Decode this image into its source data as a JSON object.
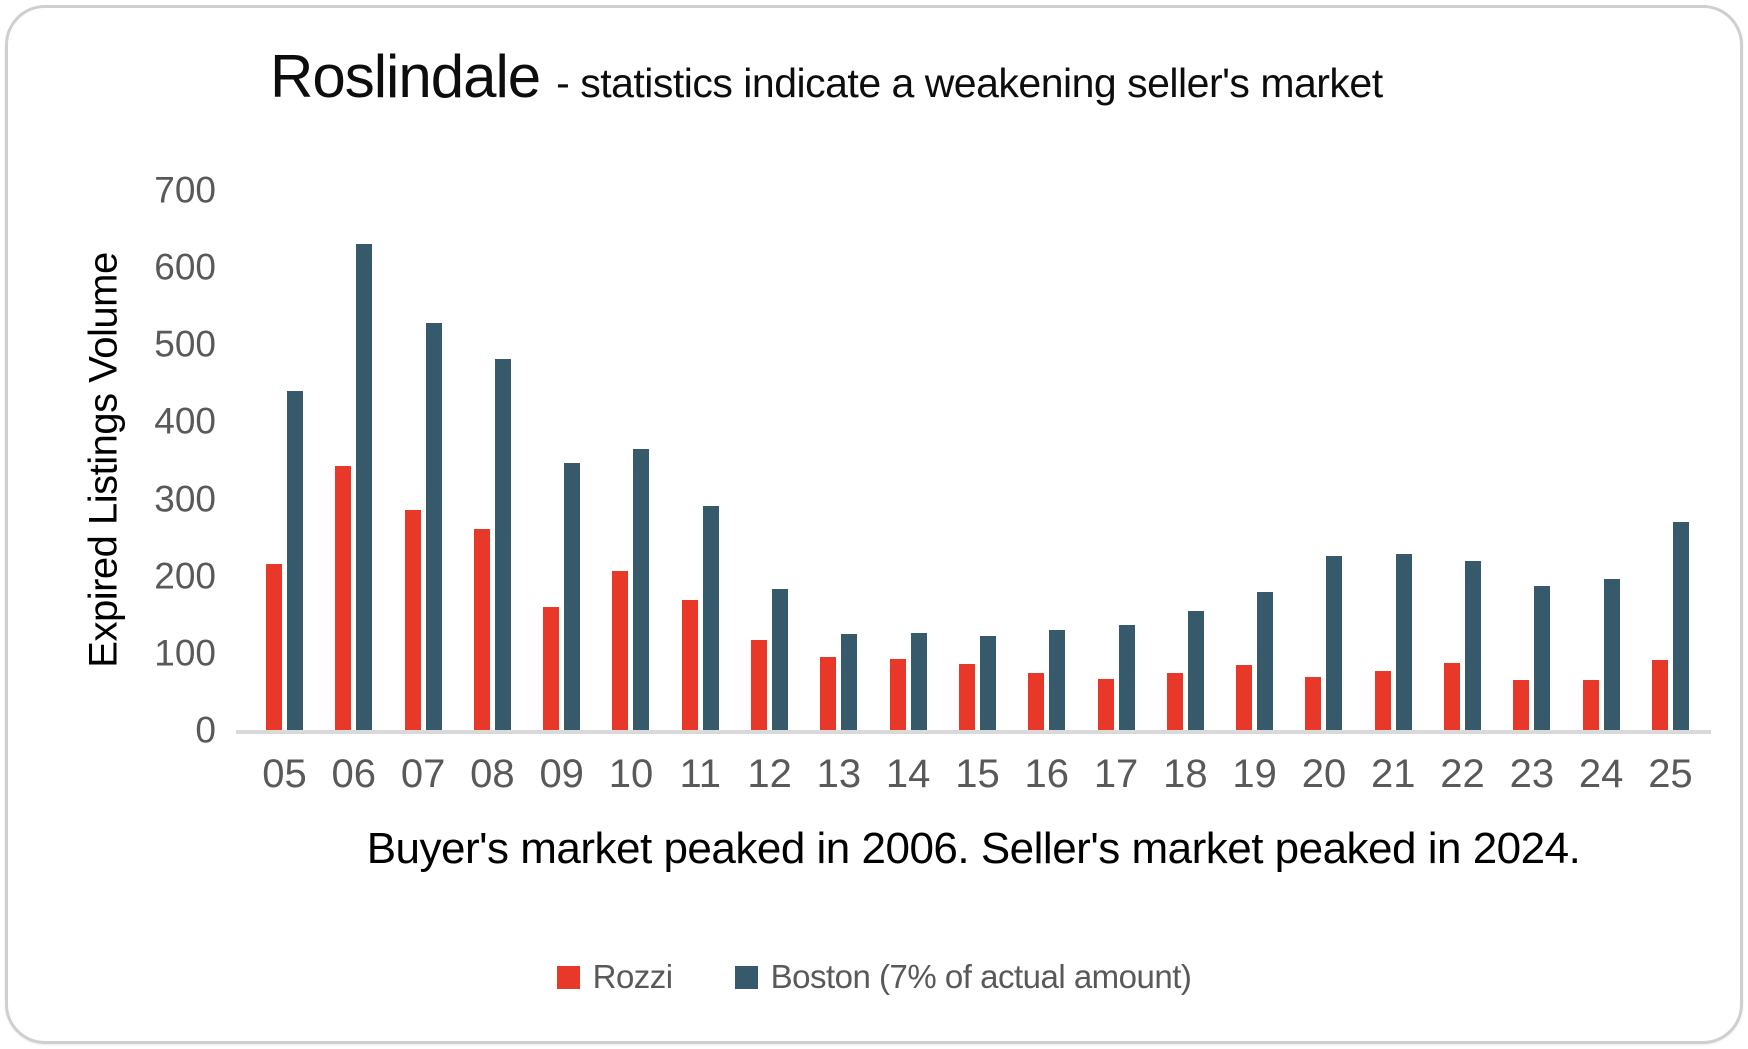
{
  "chart_data": {
    "type": "bar",
    "title": "Roslindale",
    "subtitle": "- statistics indicate a weakening seller's market",
    "ylabel": "Expired Listings Volume",
    "xlabel": "Buyer's market peaked in 2006. Seller's market peaked in 2024.",
    "categories": [
      "05",
      "06",
      "07",
      "08",
      "09",
      "10",
      "11",
      "12",
      "13",
      "14",
      "15",
      "16",
      "17",
      "18",
      "19",
      "20",
      "21",
      "22",
      "23",
      "24",
      "25"
    ],
    "series": [
      {
        "name": "Rozzi",
        "color": "#e8382a",
        "values": [
          215,
          342,
          285,
          260,
          160,
          206,
          168,
          117,
          95,
          92,
          86,
          74,
          66,
          74,
          84,
          69,
          77,
          87,
          65,
          65,
          91
        ]
      },
      {
        "name": "Boston (7% of actual amount)",
        "color": "#36596b",
        "values": [
          440,
          630,
          527,
          481,
          346,
          364,
          290,
          183,
          124,
          126,
          122,
          130,
          136,
          154,
          179,
          226,
          228,
          219,
          187,
          196,
          270
        ]
      }
    ],
    "ylim": [
      0,
      700
    ],
    "yticks": [
      0,
      100,
      200,
      300,
      400,
      500,
      600,
      700
    ],
    "grid": false,
    "legend_position": "bottom",
    "axis_line_color": "#d9d9d9",
    "tick_label_color": "#595959"
  }
}
